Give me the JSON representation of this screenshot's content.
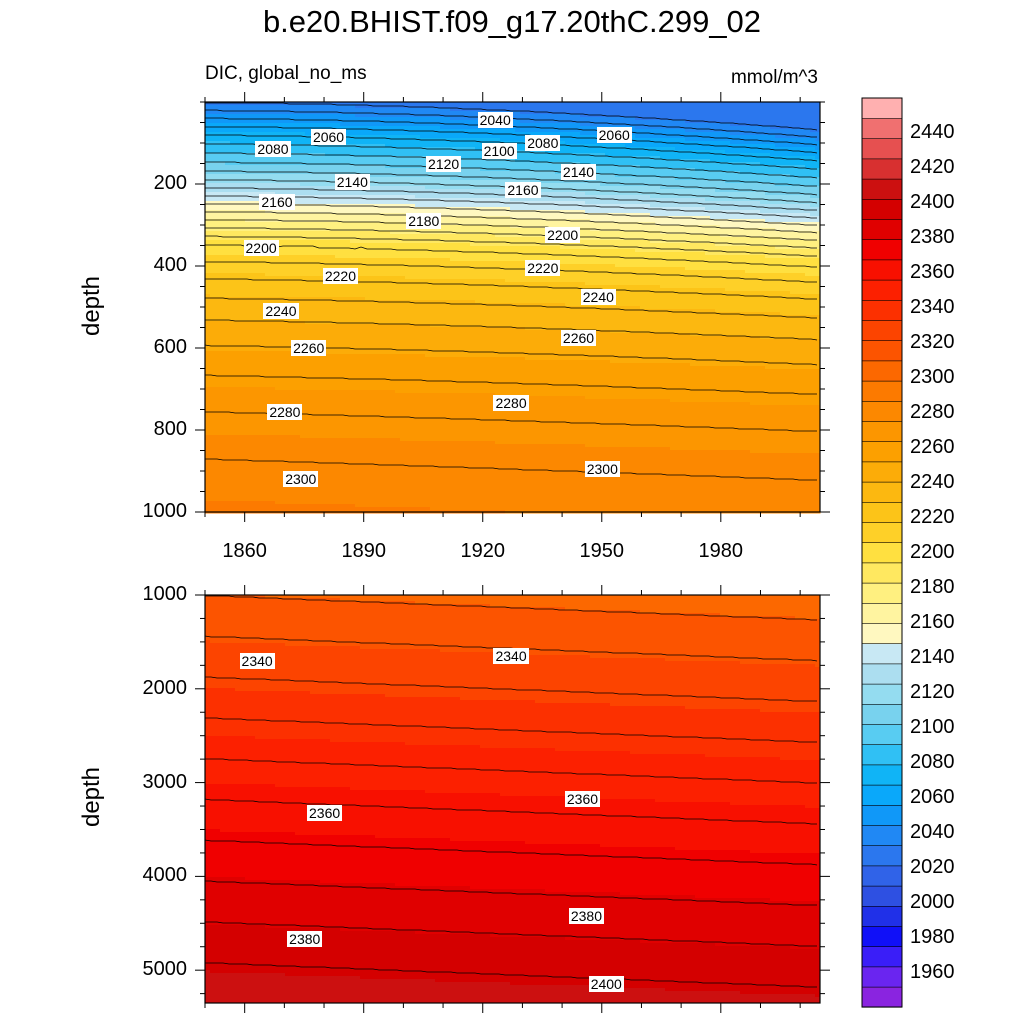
{
  "title": "b.e20.BHIST.f09_g17.20thC.299_02",
  "left_string": "DIC, global_no_ms",
  "right_string": "mmol/m^3",
  "colorbar": {
    "levels": [
      1960,
      1980,
      2000,
      2020,
      2040,
      2060,
      2080,
      2100,
      2120,
      2140,
      2160,
      2180,
      2200,
      2220,
      2240,
      2260,
      2280,
      2300,
      2320,
      2340,
      2360,
      2380,
      2400,
      2420,
      2440
    ],
    "labels": [
      "1960",
      "1980",
      "2000",
      "2020",
      "2040",
      "2060",
      "2080",
      "2100",
      "2120",
      "2140",
      "2160",
      "2180",
      "2200",
      "2220",
      "2240",
      "2260",
      "2280",
      "2300",
      "2320",
      "2340",
      "2360",
      "2380",
      "2400",
      "2420",
      "2440"
    ],
    "colors": [
      "#8a24e0",
      "#6a25f0",
      "#3a1ef8",
      "#1010f8",
      "#2030e8",
      "#2e50e2",
      "#3063e8",
      "#2b77ee",
      "#2088f4",
      "#1098f8",
      "#0aa8fa",
      "#10b4f6",
      "#30c0f4",
      "#58ccf2",
      "#78d2ee",
      "#94dcf0",
      "#acdef0",
      "#c8e8f4",
      "#fff8c0",
      "#fff4a0",
      "#fff080",
      "#ffe860",
      "#ffe040",
      "#fed028",
      "#fcc418",
      "#fcb810",
      "#fcac08",
      "#fca000",
      "#fc9600",
      "#fc8800",
      "#fc7a00",
      "#fc6800",
      "#fc5400",
      "#fc4400",
      "#fc3000",
      "#fc2000",
      "#f81000",
      "#f00000",
      "#e00000",
      "#d40000",
      "#cc1010",
      "#d83030",
      "#e65050",
      "#f07070",
      "#ffb0b0"
    ]
  },
  "chart_data": [
    {
      "type": "contour",
      "panel": "upper",
      "title": "b.e20.BHIST.f09_g17.20thC.299_02",
      "left_string": "DIC, global_no_ms",
      "right_string": "mmol/m^3",
      "xlabel": "",
      "ylabel": "depth",
      "xlim": [
        1850,
        2005
      ],
      "ylim": [
        1000,
        0
      ],
      "x_ticks": [
        1860,
        1890,
        1920,
        1950,
        1980
      ],
      "x_tick_labels": [
        "1860",
        "1890",
        "1920",
        "1950",
        "1980"
      ],
      "y_ticks": [
        200,
        400,
        600,
        800,
        1000
      ],
      "y_tick_labels": [
        "200",
        "400",
        "600",
        "800",
        "1000"
      ],
      "contour_interval": 10,
      "value_range": [
        2030,
        2310
      ],
      "contour_labels": [
        {
          "text": "2040",
          "x": 1924,
          "y": 45
        },
        {
          "text": "2060",
          "x": 1882,
          "y": 85
        },
        {
          "text": "2080",
          "x": 1868,
          "y": 115
        },
        {
          "text": "2060",
          "x": 1954,
          "y": 80
        },
        {
          "text": "2080",
          "x": 1936,
          "y": 100
        },
        {
          "text": "2100",
          "x": 1925,
          "y": 120
        },
        {
          "text": "2120",
          "x": 1911,
          "y": 150
        },
        {
          "text": "2140",
          "x": 1888,
          "y": 195
        },
        {
          "text": "2140",
          "x": 1945,
          "y": 170
        },
        {
          "text": "2160",
          "x": 1869,
          "y": 245
        },
        {
          "text": "2160",
          "x": 1931,
          "y": 215
        },
        {
          "text": "2180",
          "x": 1906,
          "y": 290
        },
        {
          "text": "2200",
          "x": 1865,
          "y": 355
        },
        {
          "text": "2200",
          "x": 1941,
          "y": 325
        },
        {
          "text": "2220",
          "x": 1885,
          "y": 425
        },
        {
          "text": "2220",
          "x": 1936,
          "y": 405
        },
        {
          "text": "2240",
          "x": 1870,
          "y": 510
        },
        {
          "text": "2240",
          "x": 1950,
          "y": 475
        },
        {
          "text": "2260",
          "x": 1877,
          "y": 600
        },
        {
          "text": "2260",
          "x": 1945,
          "y": 575
        },
        {
          "text": "2280",
          "x": 1871,
          "y": 755
        },
        {
          "text": "2280",
          "x": 1928,
          "y": 735
        },
        {
          "text": "2300",
          "x": 1875,
          "y": 920
        },
        {
          "text": "2300",
          "x": 1951,
          "y": 895
        }
      ]
    },
    {
      "type": "contour",
      "panel": "lower",
      "xlabel": "",
      "ylabel": "depth",
      "xlim": [
        1850,
        2005
      ],
      "ylim": [
        5350,
        1000
      ],
      "x_ticks": [
        1860,
        1890,
        1920,
        1950,
        1980
      ],
      "x_tick_labels": [
        "",
        "",
        "",
        "",
        ""
      ],
      "y_ticks": [
        1000,
        2000,
        3000,
        4000,
        5000
      ],
      "y_tick_labels": [
        "1000",
        "2000",
        "3000",
        "4000",
        "5000"
      ],
      "contour_interval": 10,
      "value_range": [
        2310,
        2410
      ],
      "contour_labels": [
        {
          "text": "2340",
          "x": 1864,
          "y": 1700
        },
        {
          "text": "2340",
          "x": 1928,
          "y": 1650
        },
        {
          "text": "2360",
          "x": 1881,
          "y": 3320
        },
        {
          "text": "2360",
          "x": 1946,
          "y": 3180
        },
        {
          "text": "2380",
          "x": 1876,
          "y": 4670
        },
        {
          "text": "2380",
          "x": 1947,
          "y": 4420
        },
        {
          "text": "2400",
          "x": 1952,
          "y": 5150
        }
      ]
    }
  ]
}
